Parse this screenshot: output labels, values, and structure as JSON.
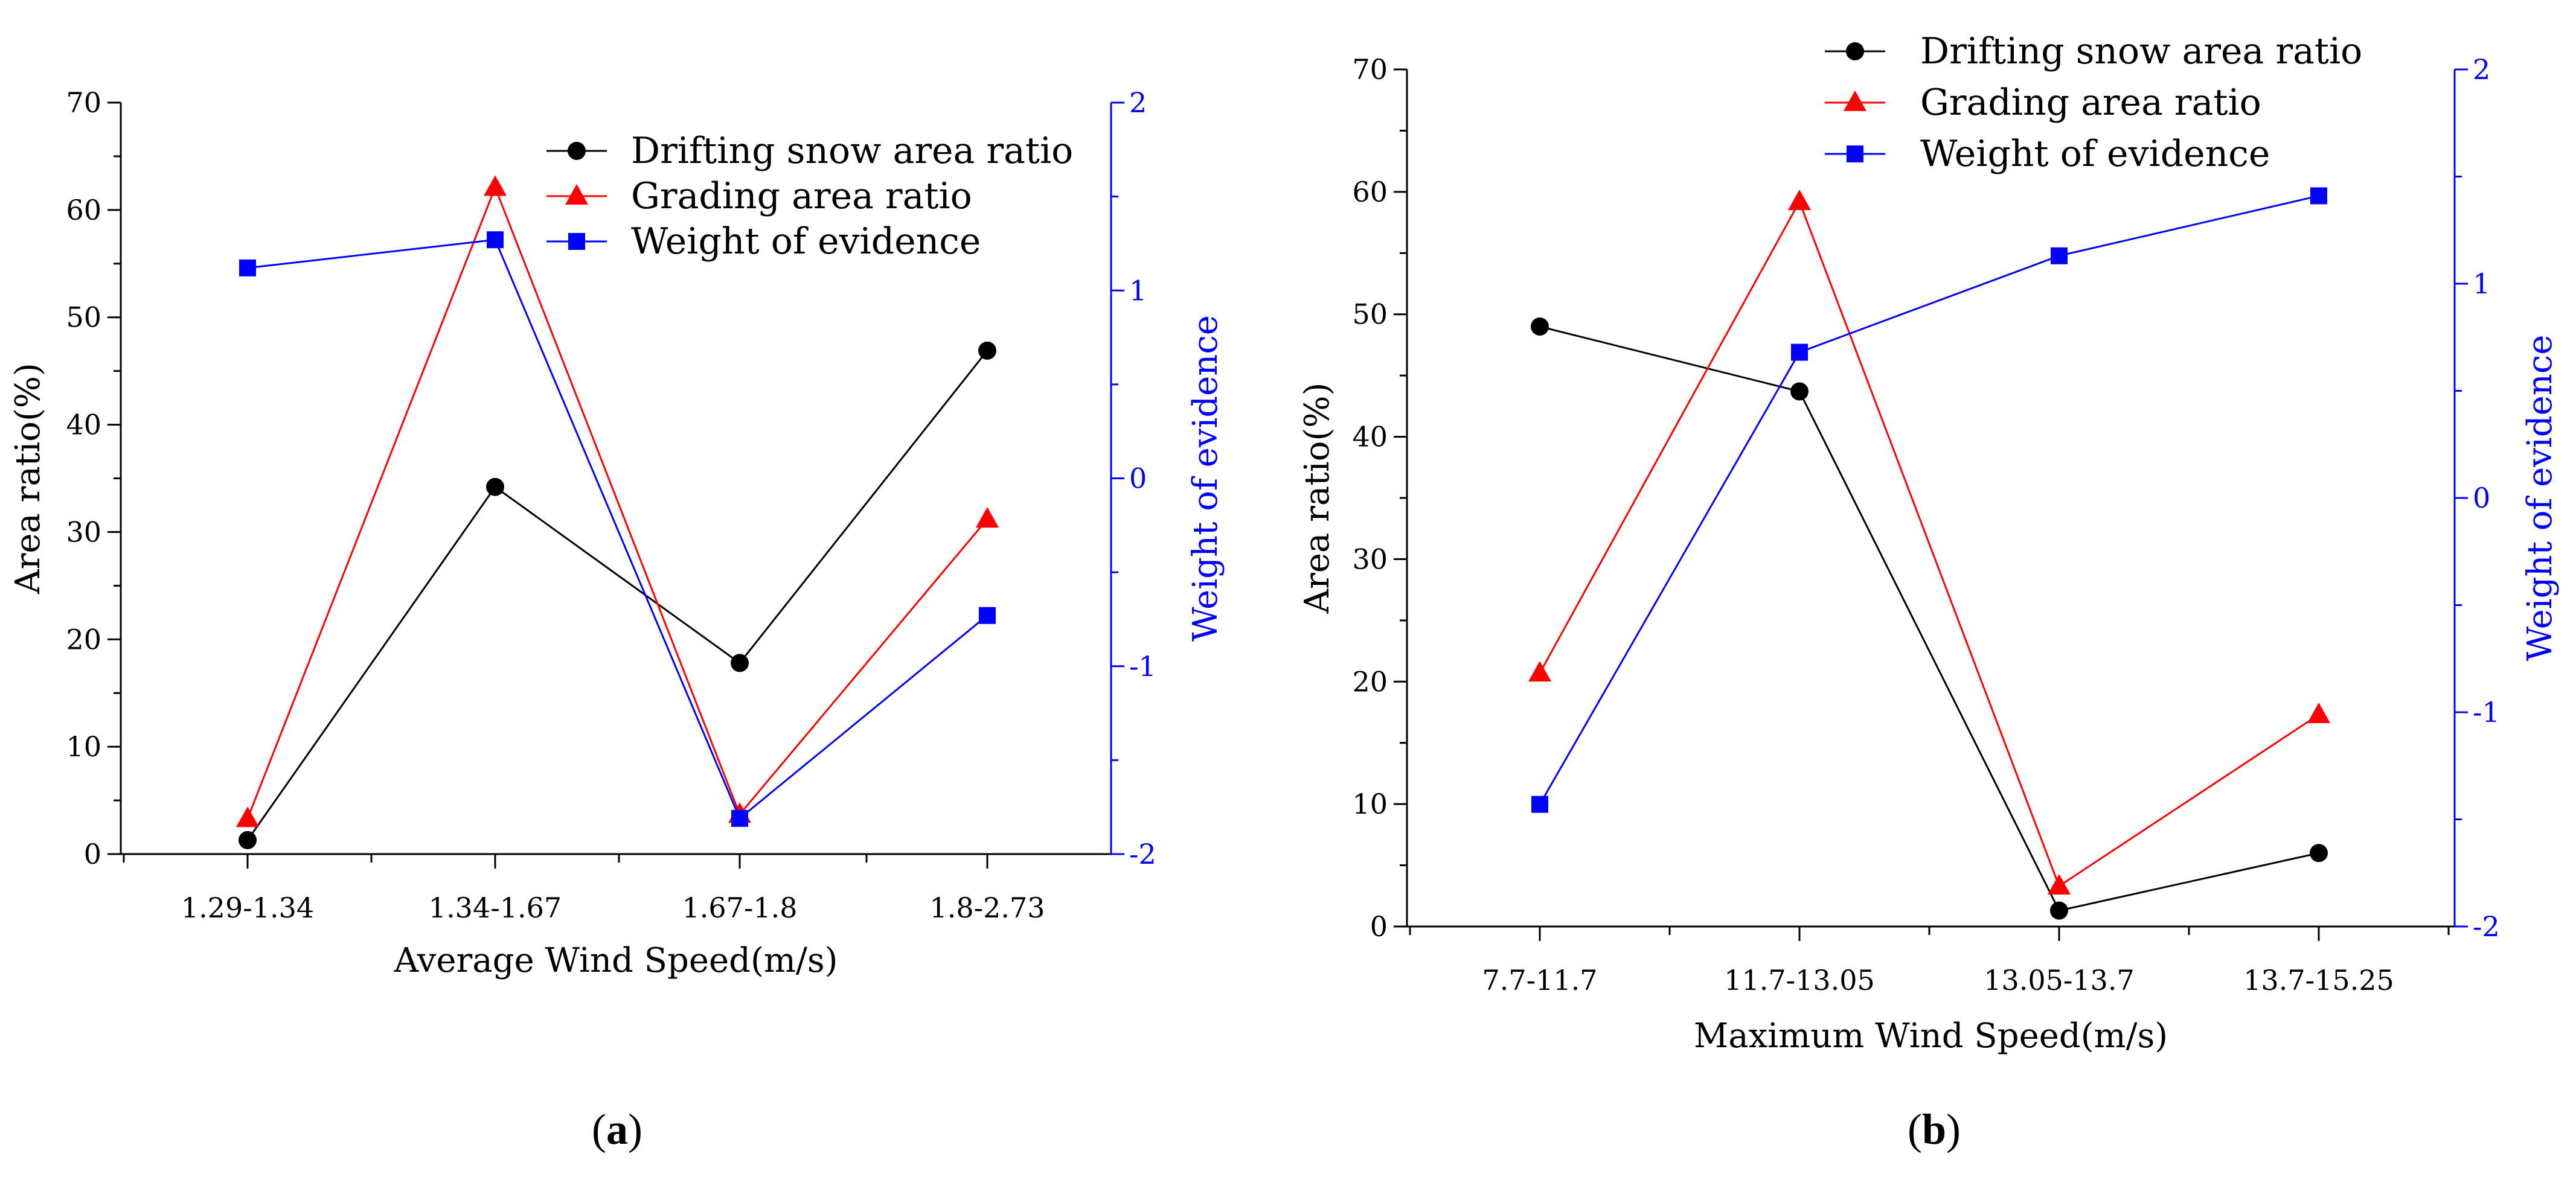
{
  "chart_data": [
    {
      "type": "line",
      "panel_label": "a",
      "xlabel": "Average Wind Speed(m/s)",
      "ylabel": "Area ratio(%)",
      "y2label": "Weight of evidence",
      "categories": [
        "1.29-1.34",
        "1.34-1.67",
        "1.67-1.8",
        "1.8-2.73"
      ],
      "ylim": [
        0,
        70
      ],
      "yticks": [
        0,
        10,
        20,
        30,
        40,
        50,
        60,
        70
      ],
      "y2lim": [
        -2,
        2
      ],
      "y2ticks": [
        -2,
        -1,
        0,
        1,
        2
      ],
      "legend_position": "top-right",
      "series": [
        {
          "name": "Drifting snow  area ratio",
          "axis": "left",
          "color": "#000000",
          "marker": "circle",
          "values": [
            1.3,
            34.2,
            17.8,
            46.9
          ]
        },
        {
          "name": "Grading area ratio",
          "axis": "left",
          "color": "#ff0000",
          "marker": "triangle",
          "values": [
            3.3,
            62.1,
            3.7,
            31.2
          ]
        },
        {
          "name": "Weight of evidence",
          "axis": "right",
          "color": "#0000ff",
          "marker": "square",
          "values": [
            1.12,
            1.27,
            -1.81,
            -0.73
          ]
        }
      ]
    },
    {
      "type": "line",
      "panel_label": "b",
      "xlabel": "Maximum Wind Speed(m/s)",
      "ylabel": "Area ratio(%)",
      "y2label": "Weight of evidence",
      "categories": [
        "7.7-11.7",
        "11.7-13.05",
        "13.05-13.7",
        "13.7-15.25"
      ],
      "ylim": [
        0,
        70
      ],
      "yticks": [
        0,
        10,
        20,
        30,
        40,
        50,
        60,
        70
      ],
      "y2lim": [
        -2,
        2
      ],
      "y2ticks": [
        -2,
        -1,
        0,
        1,
        2
      ],
      "legend_position": "top-right",
      "series": [
        {
          "name": "Drifting snow  area ratio",
          "axis": "left",
          "color": "#000000",
          "marker": "circle",
          "values": [
            49.0,
            43.7,
            1.3,
            6.0
          ]
        },
        {
          "name": "Grading area ratio",
          "axis": "left",
          "color": "#ff0000",
          "marker": "triangle",
          "values": [
            20.7,
            59.2,
            3.3,
            17.3
          ]
        },
        {
          "name": "Weight of evidence",
          "axis": "right",
          "color": "#0000ff",
          "marker": "square",
          "values": [
            -1.43,
            0.68,
            1.13,
            1.41
          ]
        }
      ]
    }
  ],
  "colors": {
    "left_axis": "#000000",
    "right_axis": "#0000ff"
  }
}
